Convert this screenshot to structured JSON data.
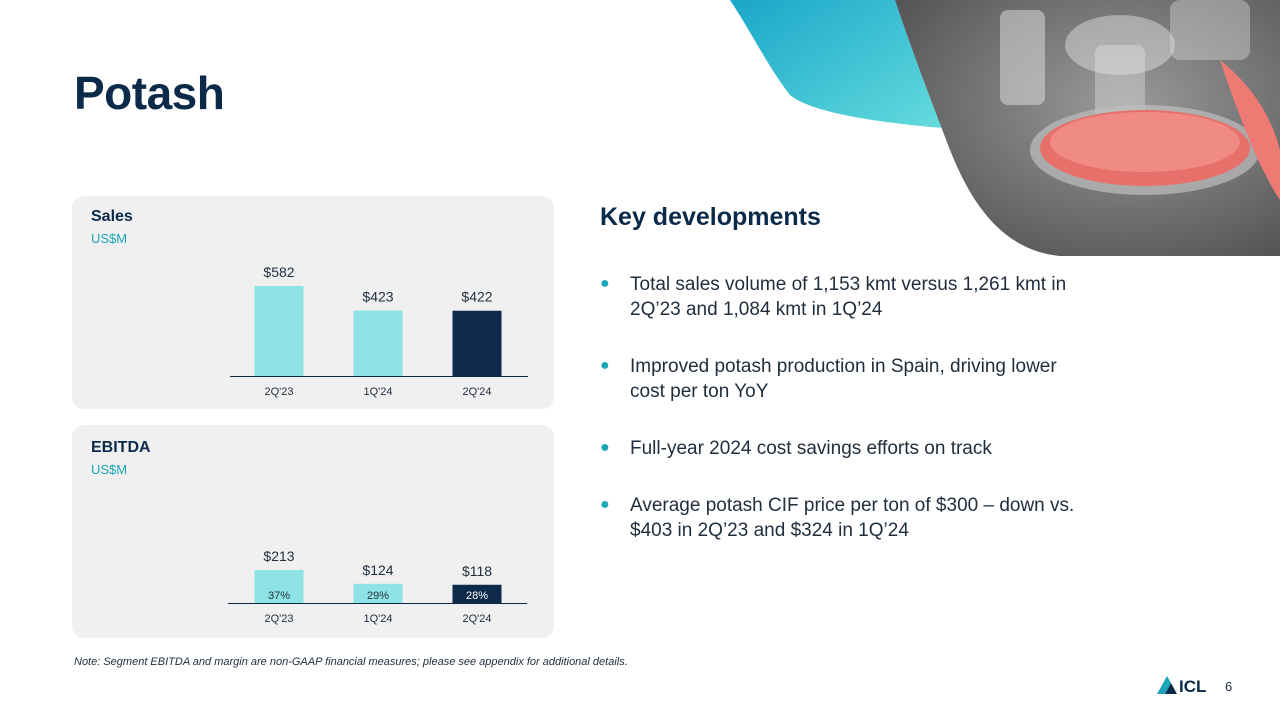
{
  "slide": {
    "title": "Potash",
    "page_number": "6",
    "note": "Note: Segment EBITDA and margin are non-GAAP financial measures; please see appendix for additional details.",
    "logo_text": "ICL"
  },
  "key_developments": {
    "title": "Key developments",
    "bullets": [
      "Total sales volume of 1,153 kmt versus 1,261 kmt in 2Q’23 and 1,084 kmt in 1Q’24",
      "Improved potash production in Spain, driving lower cost per ton YoY",
      "Full-year 2024 cost savings efforts on track",
      "Average potash CIF price per ton of $300 – down vs. $403 in 2Q’23 and $324 in 1Q’24"
    ]
  },
  "colors": {
    "bar_light": "#8ee4e4",
    "bar_dark": "#0d2a4a",
    "accent": "#1aa6b7"
  },
  "chart_data": [
    {
      "type": "bar",
      "title": "Sales",
      "unit": "US$M",
      "categories": [
        "2Q'23",
        "1Q'24",
        "2Q'24"
      ],
      "values": [
        582,
        423,
        422
      ],
      "value_labels": [
        "$582",
        "$423",
        "$422"
      ],
      "highlight": [
        false,
        false,
        true
      ]
    },
    {
      "type": "bar",
      "title": "EBITDA",
      "unit": "US$M",
      "categories": [
        "2Q'23",
        "1Q'24",
        "2Q'24"
      ],
      "values": [
        213,
        124,
        118
      ],
      "value_labels": [
        "$213",
        "$124",
        "$118"
      ],
      "margins": [
        "37%",
        "29%",
        "28%"
      ],
      "highlight": [
        false,
        false,
        true
      ]
    }
  ]
}
